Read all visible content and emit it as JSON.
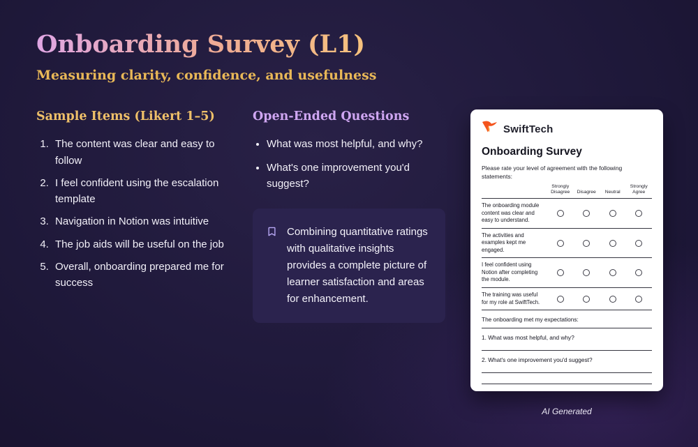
{
  "page": {
    "title": "Onboarding Survey (L1)",
    "subtitle": "Measuring clarity, confidence, and usefulness"
  },
  "sample_items": {
    "heading": "Sample Items (Likert 1–5)",
    "items": [
      "The content was clear and easy to follow",
      "I feel confident using the escalation template",
      "Navigation in Notion was intuitive",
      "The job aids will be useful on the job",
      "Overall, onboarding prepared me for success"
    ]
  },
  "open_ended": {
    "heading": "Open-Ended Questions",
    "items": [
      "What was most helpful, and why?",
      "What's one improvement you'd suggest?"
    ],
    "callout": "Combining quantitative ratings with qualitative insights provides a complete picture of learner satisfaction and areas for enhancement."
  },
  "survey_card": {
    "brand": "SwiftTech",
    "title": "Onboarding Survey",
    "instructions": "Please rate your level of agreement with the following statements:",
    "columns": [
      "Strongly Disagree",
      "Disagree",
      "Neutral",
      "Strongly Agree"
    ],
    "rows": [
      "The onboarding module content was clear and easy to understand.",
      "The activities and examples kept me engaged.",
      "I feel confident using Notion after completing the module.",
      "The training was useful for my role at SwiftTech."
    ],
    "expectations_label": "The onboarding met my expectations:",
    "open_questions": [
      "1. What was most helpful, and why?",
      "2. What's one improvement you'd suggest?"
    ],
    "footer": "AI Generated"
  },
  "colors": {
    "background_dark": "#140f27",
    "background_mid": "#1e1839",
    "title_gradient_start": "#dfa6e4",
    "title_gradient_end": "#f6c27d",
    "subtitle_gold": "#e9b857",
    "heading_gold": "#efc069",
    "heading_purple": "#cfa6f2",
    "callout_bg": "#2b234e",
    "callout_icon": "#b9a8f5",
    "logo_orange": "#f4541d",
    "card_bg": "#ffffff"
  }
}
